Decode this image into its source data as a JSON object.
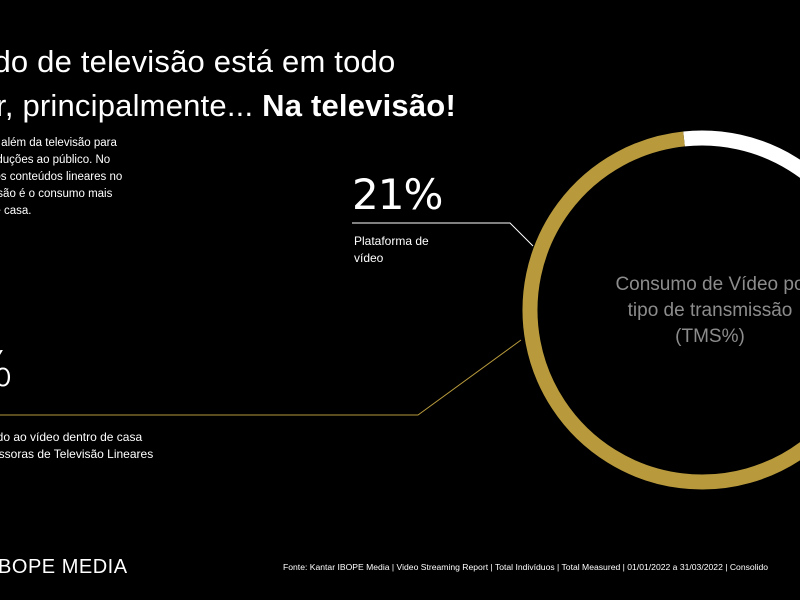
{
  "headline": {
    "line1": "údo de televisão está em todo",
    "line2_regular": "r, principalmente... ",
    "line2_emphasis": "Na televisão!"
  },
  "intro": {
    "lines": [
      "am além da televisão para",
      "oduções ao público. No",
      "aos conteúdos lineares no",
      "visão é o consumo mais",
      "de casa."
    ]
  },
  "chart_data": {
    "type": "pie",
    "variant": "donut",
    "title": "Consumo de Vídeo por tipo de transmissão (TMS%)",
    "title_lines": [
      "Consumo de Vídeo po",
      "tipo de transmissão",
      "(TMS%)"
    ],
    "slices": [
      {
        "label": "Plataforma de vídeo",
        "label_lines": [
          "Plataforma de",
          "vídeo"
        ],
        "value": 21,
        "display": "21%",
        "color": "#ffffff"
      },
      {
        "label": "ado ao vídeo dentro de casa missoras de Televisão Lineares",
        "label_lines": [
          "ado ao vídeo dentro de casa",
          "missoras de Televisão Lineares"
        ],
        "value": 79,
        "display": "%",
        "color": "#b89a3c"
      }
    ],
    "center_text_color": "#8c8c8c"
  },
  "footer": {
    "logo": "IBOPE MEDIA",
    "source": "Fonte: Kantar IBOPE Media | Video Streaming Report | Total Indivíduos |  Total Measured | 01/01/2022 a 31/03/2022 | Consolido"
  },
  "colors": {
    "background": "#000000",
    "gold": "#b89a3c",
    "white": "#ffffff",
    "gray_text": "#8c8c8c"
  }
}
